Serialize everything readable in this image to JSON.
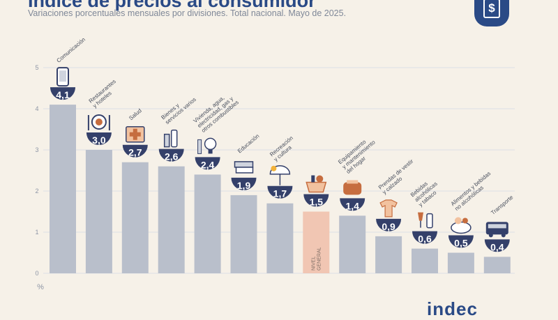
{
  "header": {
    "title": "Índice de precios al consumidor",
    "subtitle": "Variaciones porcentuales mensuales por divisiones. Total nacional. Mayo de 2025."
  },
  "footer": {
    "logo_text": "indec"
  },
  "colors": {
    "bar": "#b9bfcb",
    "highlight_bar": "#f1c6b3",
    "label_bubble": "#34406a",
    "label_text": "#ffffff",
    "grid": "#dcdfe6",
    "tick": "#8d95a5",
    "category_text": "#444b5a",
    "icon_accent": "#c66d3f"
  },
  "chart_data": {
    "type": "bar",
    "title": "Índice de precios al consumidor",
    "subtitle": "Variaciones porcentuales mensuales por divisiones. Total nacional. Mayo de 2025.",
    "ylabel": "%",
    "ylim": [
      0,
      5
    ],
    "yticks": [
      0,
      1,
      2,
      3,
      4,
      5
    ],
    "grid": true,
    "categories": [
      "Comunicación",
      "Restaurantes y hoteles",
      "Salud",
      "Bienes y servicios varios",
      "Vivienda, agua, electricidad, gas y otros combustibles",
      "Educación",
      "Recreación y cultura",
      "Nivel general",
      "Equipamiento y mantenimiento del hogar",
      "Prendas de vestir y calzado",
      "Bebidas alcohólicas y tabaco",
      "Alimentos y bebidas no alcohólicas",
      "Transporte"
    ],
    "category_labels": [
      [
        "Comunicación"
      ],
      [
        "Restaurantes",
        "y hoteles"
      ],
      [
        "Salud"
      ],
      [
        "Bienes y",
        "servicios varios"
      ],
      [
        "Vivienda, agua,",
        "electricidad, gas y",
        "otros combustibles"
      ],
      [
        "Educación"
      ],
      [
        "Recreación",
        "y cultura"
      ],
      [],
      [
        "Equipamiento",
        "y mantenimiento",
        "del hogar"
      ],
      [
        "Prendas de vestir",
        "y calzado"
      ],
      [
        "Bebidas",
        "alcohólicas",
        "y tabaco"
      ],
      [
        "Alimentos y bebidas",
        "no alcohólicas"
      ],
      [
        "Transporte"
      ]
    ],
    "in_bar_label": [
      "NIVEL",
      "GENERAL"
    ],
    "highlight_index": 7,
    "values": [
      4.1,
      3.0,
      2.7,
      2.6,
      2.4,
      1.9,
      1.7,
      1.5,
      1.4,
      0.9,
      0.6,
      0.5,
      0.4
    ],
    "value_labels": [
      "4,1",
      "3,0",
      "2,7",
      "2,6",
      "2,4",
      "1,9",
      "1,7",
      "1,5",
      "1,4",
      "0,9",
      "0,6",
      "0,5",
      "0,4"
    ],
    "icons": [
      "smartphone-icon",
      "dining-plate-icon",
      "first-aid-icon",
      "toiletries-icon",
      "lightbulb-tools-icon",
      "books-icon",
      "beach-umbrella-icon",
      "shopping-basket-icon",
      "toaster-icon",
      "clothing-icon",
      "wine-glass-icon",
      "food-plate-icon",
      "bus-icon"
    ]
  }
}
